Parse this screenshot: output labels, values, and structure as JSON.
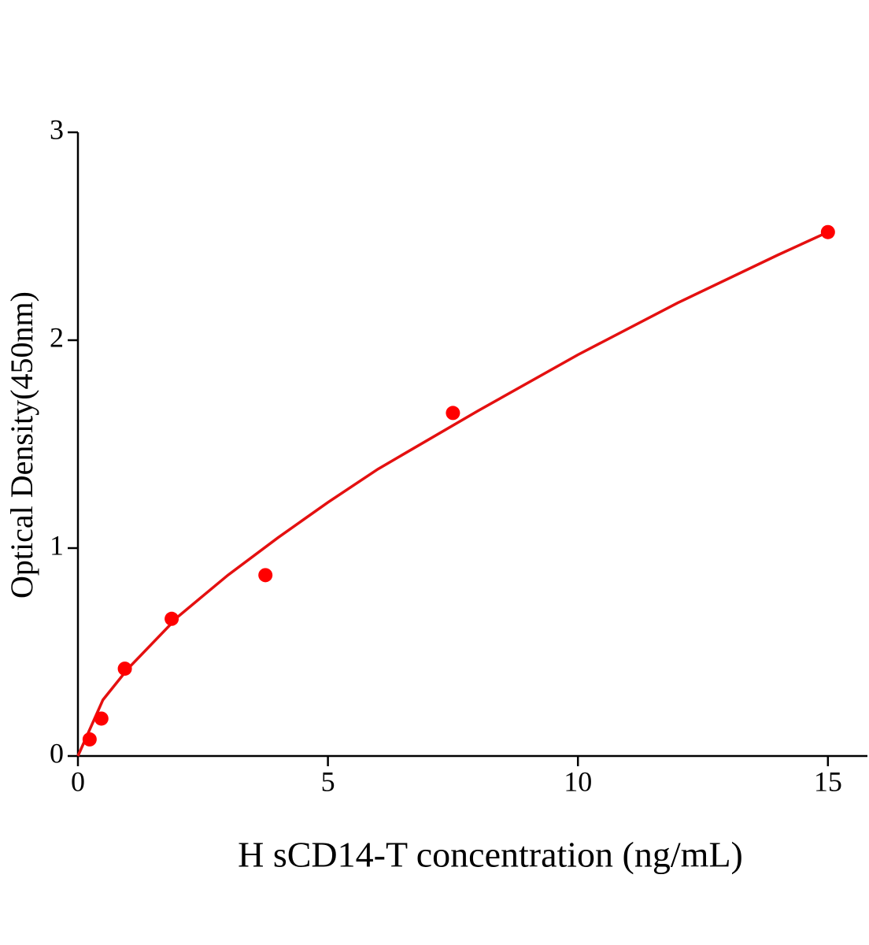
{
  "chart_data": {
    "type": "scatter",
    "x_label": "H sCD14-T concentration (ng/mL)",
    "y_label": "Optical Density(450nm)",
    "x": [
      0.234,
      0.469,
      0.938,
      1.875,
      3.75,
      7.5,
      15
    ],
    "values": [
      0.08,
      0.18,
      0.42,
      0.66,
      0.87,
      1.65,
      2.52
    ],
    "color": "#ff0000",
    "curve": {
      "x": [
        0,
        0.5,
        1,
        2,
        3,
        4,
        5,
        6,
        8,
        10,
        12,
        14,
        15
      ],
      "values": [
        0,
        0.27,
        0.42,
        0.67,
        0.87,
        1.05,
        1.22,
        1.38,
        1.66,
        1.93,
        2.18,
        2.41,
        2.52
      ],
      "color": "#e41010"
    },
    "xlim": [
      0,
      15.79
    ],
    "ylim": [
      0,
      3
    ],
    "xticks": [
      0,
      5,
      10,
      15
    ],
    "yticks": [
      0,
      1,
      2,
      3
    ]
  }
}
